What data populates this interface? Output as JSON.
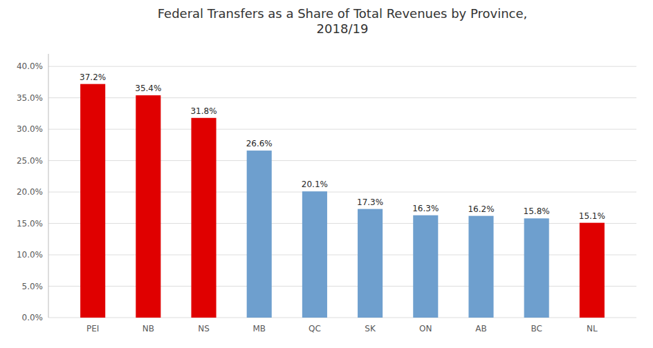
{
  "chart_data": {
    "type": "bar",
    "title": "Federal Transfers as a Share of Total Revenues by Province,\n2018/19",
    "categories": [
      "PEI",
      "NB",
      "NS",
      "MB",
      "QC",
      "SK",
      "ON",
      "AB",
      "BC",
      "NL"
    ],
    "values": [
      37.2,
      35.4,
      31.8,
      26.6,
      20.1,
      17.3,
      16.3,
      16.2,
      15.8,
      15.1
    ],
    "value_labels": [
      "37.2%",
      "35.4%",
      "31.8%",
      "26.6%",
      "20.1%",
      "17.3%",
      "16.3%",
      "16.2%",
      "15.8%",
      "15.1%"
    ],
    "colors": [
      "#e00000",
      "#e00000",
      "#e00000",
      "#6e9fce",
      "#6e9fce",
      "#6e9fce",
      "#6e9fce",
      "#6e9fce",
      "#6e9fce",
      "#e00000"
    ],
    "ylim": [
      0,
      42
    ],
    "yticks": [
      {
        "value": 0,
        "label": "0.0%"
      },
      {
        "value": 5,
        "label": "5.0%"
      },
      {
        "value": 10,
        "label": "10.0%"
      },
      {
        "value": 15,
        "label": "15.0%"
      },
      {
        "value": 20,
        "label": "20.0%"
      },
      {
        "value": 25,
        "label": "25.0%"
      },
      {
        "value": 30,
        "label": "30.0%"
      },
      {
        "value": 35,
        "label": "35.0%"
      },
      {
        "value": 40,
        "label": "40.0%"
      }
    ],
    "grid": true,
    "data_labels": true
  }
}
